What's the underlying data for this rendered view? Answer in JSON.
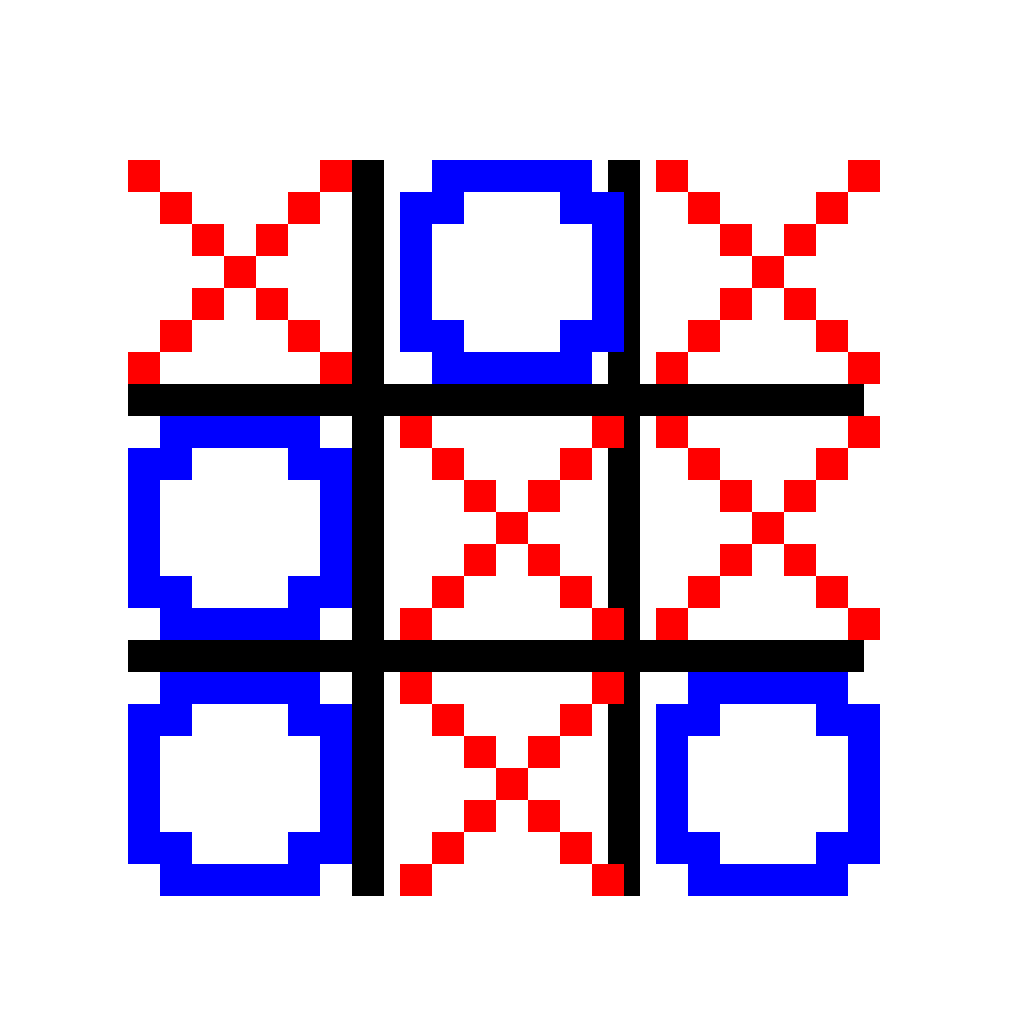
{
  "game": {
    "type": "tic-tac-toe",
    "board": [
      [
        "X",
        "O",
        "X"
      ],
      [
        "O",
        "X",
        "X"
      ],
      [
        "O",
        "X",
        "O"
      ]
    ],
    "colors": {
      "x": "#ff0000",
      "o": "#0000ff",
      "grid": "#000000",
      "background": "#ffffff"
    }
  }
}
